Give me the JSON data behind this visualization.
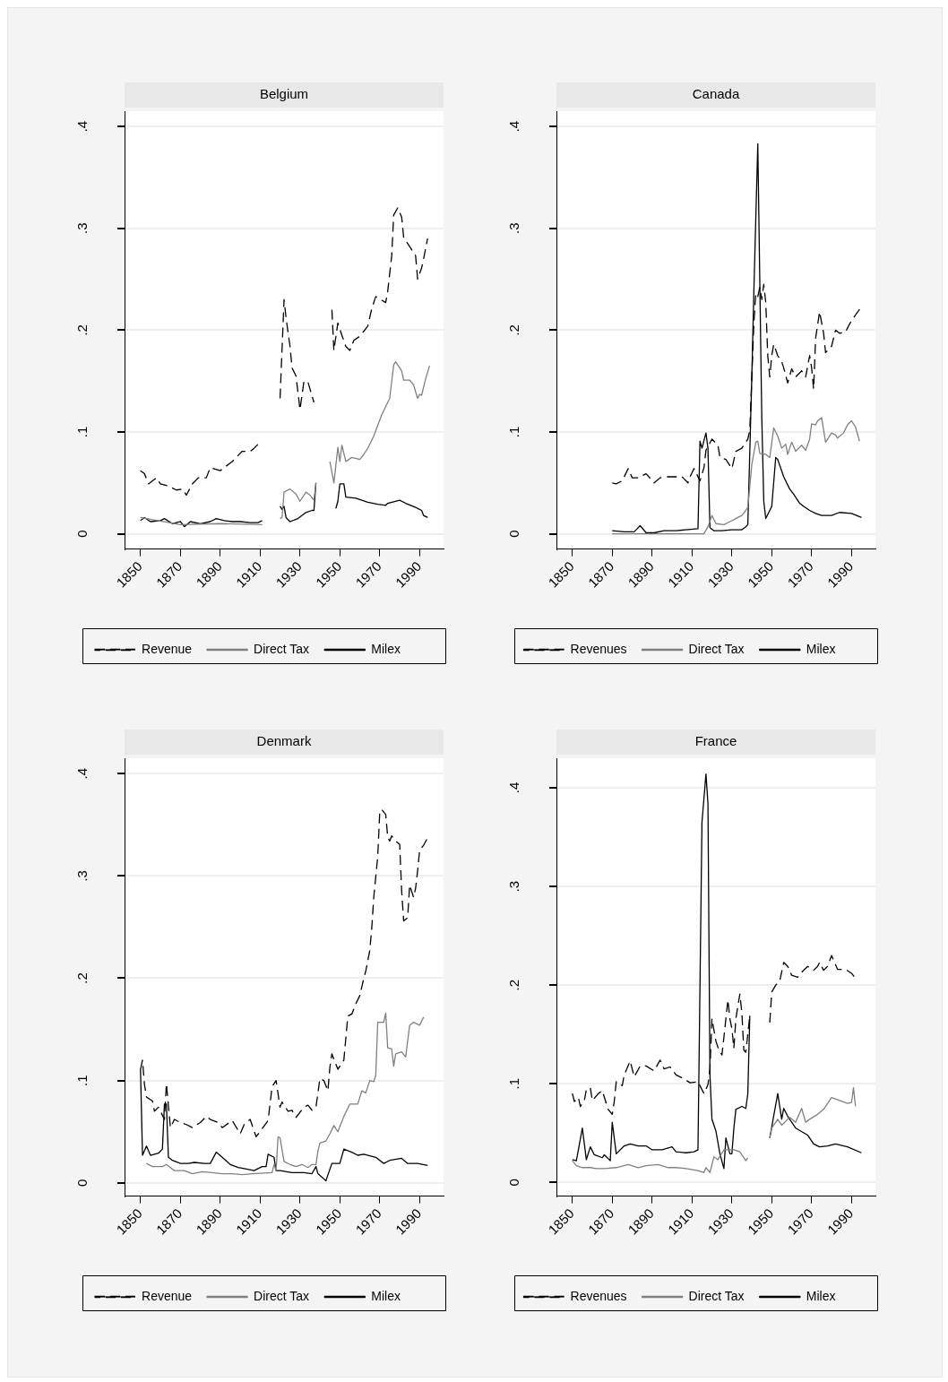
{
  "chart_data": [
    {
      "type": "line",
      "title": "Belgium",
      "xlim": [
        1842,
        2002
      ],
      "xticks": [
        1850,
        1870,
        1890,
        1910,
        1930,
        1950,
        1970,
        1990
      ],
      "ylim": [
        -0.015,
        0.415
      ],
      "yticks": [
        {
          "value": 0,
          "label": "0"
        },
        {
          "value": 0.1,
          "label": ".1"
        },
        {
          "value": 0.2,
          "label": ".2"
        },
        {
          "value": 0.3,
          "label": ".3"
        },
        {
          "value": 0.4,
          "label": ".4"
        }
      ],
      "grid": "y",
      "legend": "bottom",
      "series": [
        {
          "name": "Revenue",
          "color": "#000000",
          "line_style": "dashed",
          "x": [
            1850,
            1852,
            1854,
            1858,
            1860,
            1864,
            1868,
            1871,
            1873,
            1876,
            1879,
            1883,
            1885,
            1890,
            1892,
            1896,
            1901,
            1905,
            1907,
            1909,
            1911,
            1915,
            1920,
            1921,
            1922,
            1923,
            1925,
            1926,
            1928,
            1930,
            1932,
            1934,
            1937,
            1941,
            1946,
            1947,
            1949,
            1951,
            1953,
            1955,
            1957,
            1960,
            1964,
            1966,
            1968,
            1973,
            1974,
            1976,
            1977,
            1979,
            1981,
            1982,
            1985,
            1988,
            1989,
            1991,
            1992,
            1994
          ],
          "values": [
            0.062,
            0.059,
            0.049,
            0.055,
            0.049,
            0.047,
            0.043,
            0.044,
            0.038,
            0.049,
            0.055,
            0.055,
            0.065,
            0.062,
            0.065,
            0.071,
            0.081,
            0.081,
            0.084,
            0.088,
            0.088,
            null,
            0.133,
            0.181,
            0.23,
            0.212,
            0.184,
            0.163,
            0.155,
            0.122,
            0.15,
            0.149,
            0.129,
            null,
            0.22,
            0.18,
            0.207,
            0.195,
            0.184,
            0.18,
            0.19,
            0.194,
            0.204,
            0.221,
            0.233,
            0.227,
            0.238,
            0.273,
            0.313,
            0.32,
            0.311,
            0.291,
            0.282,
            0.273,
            0.25,
            0.261,
            0.27,
            0.29
          ]
        },
        {
          "name": "Direct Tax",
          "color": "#808080",
          "line_style": "solid",
          "x": [
            1850,
            1870,
            1890,
            1911,
            1915,
            1920,
            1921,
            1922,
            1925,
            1928,
            1930,
            1933,
            1935,
            1937,
            1938,
            1942,
            1945,
            1947,
            1949,
            1950,
            1951,
            1953,
            1956,
            1960,
            1962,
            1964,
            1967,
            1971,
            1975,
            1977,
            1978,
            1981,
            1982,
            1985,
            1987,
            1989,
            1990,
            1991,
            1993,
            1995
          ],
          "values": [
            0.016,
            0.009,
            0.01,
            0.009,
            null,
            0.015,
            0.016,
            0.041,
            0.044,
            0.039,
            0.032,
            0.041,
            0.038,
            0.033,
            0.05,
            null,
            0.071,
            0.05,
            0.085,
            0.071,
            0.087,
            0.071,
            0.075,
            0.073,
            0.078,
            0.084,
            0.096,
            0.117,
            0.133,
            0.166,
            0.169,
            0.16,
            0.151,
            0.151,
            0.146,
            0.133,
            0.137,
            0.136,
            0.152,
            0.165
          ]
        },
        {
          "name": "Milex",
          "color": "#000000",
          "line_style": "solid",
          "x": [
            1850,
            1852,
            1855,
            1860,
            1862,
            1866,
            1870,
            1872,
            1875,
            1880,
            1885,
            1888,
            1892,
            1896,
            1900,
            1905,
            1909,
            1911,
            1915,
            1920,
            1921,
            1922,
            1923,
            1925,
            1929,
            1933,
            1936,
            1937,
            1938,
            1942,
            1948,
            1949,
            1950,
            1952,
            1953,
            1958,
            1964,
            1969,
            1973,
            1974,
            1980,
            1983,
            1988,
            1991,
            1992,
            1994
          ],
          "values": [
            0.013,
            0.016,
            0.012,
            0.013,
            0.015,
            0.01,
            0.012,
            0.007,
            0.012,
            0.01,
            0.012,
            0.015,
            0.013,
            0.012,
            0.012,
            0.011,
            0.011,
            0.013,
            null,
            0.027,
            0.024,
            0.027,
            0.016,
            0.012,
            0.015,
            0.021,
            0.023,
            0.023,
            0.05,
            null,
            0.025,
            0.032,
            0.049,
            0.049,
            0.036,
            0.035,
            0.031,
            0.029,
            0.028,
            0.03,
            0.033,
            0.03,
            0.026,
            0.023,
            0.018,
            0.016
          ]
        }
      ]
    },
    {
      "type": "line",
      "title": "Canada",
      "xlim": [
        1842,
        2002
      ],
      "xticks": [
        1850,
        1870,
        1890,
        1910,
        1930,
        1950,
        1970,
        1990
      ],
      "ylim": [
        -0.015,
        0.415
      ],
      "yticks": [
        {
          "value": 0,
          "label": "0"
        },
        {
          "value": 0.1,
          "label": ".1"
        },
        {
          "value": 0.2,
          "label": ".2"
        },
        {
          "value": 0.3,
          "label": ".3"
        },
        {
          "value": 0.4,
          "label": ".4"
        }
      ],
      "grid": "y",
      "legend": "bottom",
      "series": [
        {
          "name": "Revenues",
          "color": "#000000",
          "line_style": "dashed",
          "x": [
            1870,
            1872,
            1875,
            1878,
            1880,
            1883,
            1887,
            1891,
            1894,
            1898,
            1905,
            1908,
            1909,
            1911,
            1914,
            1916,
            1917,
            1920,
            1923,
            1924,
            1927,
            1930,
            1932,
            1935,
            1938,
            1939,
            1940,
            1941,
            1942,
            1943,
            1944,
            1945,
            1946,
            1947,
            1948,
            1949,
            1950,
            1951,
            1953,
            1955,
            1956,
            1958,
            1960,
            1962,
            1965,
            1967,
            1969,
            1970,
            1971,
            1972,
            1974,
            1976,
            1977,
            1980,
            1982,
            1984,
            1987,
            1989,
            1992,
            1995
          ],
          "values": [
            0.05,
            0.049,
            0.052,
            0.064,
            0.055,
            0.055,
            0.059,
            0.05,
            0.055,
            0.056,
            0.056,
            0.05,
            0.056,
            0.064,
            0.052,
            0.065,
            0.082,
            0.093,
            0.087,
            0.075,
            0.073,
            0.064,
            0.081,
            0.084,
            0.093,
            0.102,
            0.154,
            0.206,
            0.236,
            0.233,
            0.242,
            0.23,
            0.245,
            0.227,
            0.175,
            0.154,
            0.175,
            0.186,
            0.175,
            0.169,
            0.163,
            0.148,
            0.162,
            0.154,
            0.16,
            0.154,
            0.175,
            0.163,
            0.142,
            0.192,
            0.218,
            0.197,
            0.178,
            0.184,
            0.2,
            0.197,
            0.198,
            0.206,
            0.215,
            0.223
          ]
        },
        {
          "name": "Direct Tax",
          "color": "#808080",
          "line_style": "solid",
          "x": [
            1870,
            1916,
            1918,
            1920,
            1922,
            1926,
            1929,
            1932,
            1935,
            1937,
            1938,
            1940,
            1942,
            1943,
            1944,
            1947,
            1949,
            1951,
            1953,
            1955,
            1957,
            1958,
            1960,
            1962,
            1965,
            1967,
            1969,
            1970,
            1972,
            1973,
            1975,
            1977,
            1980,
            1982,
            1983,
            1986,
            1988,
            1990,
            1992,
            1994
          ],
          "values": [
            0,
            0,
            0.007,
            0.018,
            0.01,
            0.009,
            0.012,
            0.015,
            0.018,
            0.023,
            0.026,
            0.068,
            0.09,
            0.091,
            0.079,
            0.078,
            0.075,
            0.104,
            0.096,
            0.084,
            0.088,
            0.078,
            0.09,
            0.081,
            0.087,
            0.082,
            0.093,
            0.108,
            0.107,
            0.111,
            0.114,
            0.09,
            0.099,
            0.097,
            0.094,
            0.099,
            0.107,
            0.111,
            0.105,
            0.091
          ]
        },
        {
          "name": "Milex",
          "color": "#000000",
          "line_style": "solid",
          "x": [
            1870,
            1876,
            1881,
            1884,
            1887,
            1891,
            1896,
            1902,
            1907,
            1913,
            1914,
            1915,
            1917,
            1918,
            1919,
            1921,
            1925,
            1930,
            1935,
            1937,
            1938,
            1940,
            1941,
            1943,
            1945,
            1946,
            1947,
            1950,
            1952,
            1953,
            1956,
            1959,
            1961,
            1964,
            1966,
            1969,
            1972,
            1975,
            1980,
            1984,
            1990,
            1995
          ],
          "values": [
            0.003,
            0.002,
            0.002,
            0.008,
            0.001,
            0.001,
            0.003,
            0.003,
            0.004,
            0.005,
            0.091,
            0.084,
            0.099,
            0.084,
            0.006,
            0.003,
            0.003,
            0.004,
            0.004,
            0.007,
            0.009,
            0.154,
            0.236,
            0.383,
            0.114,
            0.032,
            0.015,
            0.027,
            0.075,
            0.073,
            0.056,
            0.044,
            0.039,
            0.03,
            0.027,
            0.023,
            0.02,
            0.018,
            0.018,
            0.021,
            0.02,
            0.016
          ]
        }
      ]
    },
    {
      "type": "line",
      "title": "Denmark",
      "xlim": [
        1842,
        2002
      ],
      "xticks": [
        1850,
        1870,
        1890,
        1910,
        1930,
        1950,
        1970,
        1990
      ],
      "ylim": [
        -0.013,
        0.415
      ],
      "yticks": [
        {
          "value": 0,
          "label": "0"
        },
        {
          "value": 0.1,
          "label": ".1"
        },
        {
          "value": 0.2,
          "label": ".2"
        },
        {
          "value": 0.3,
          "label": ".3"
        },
        {
          "value": 0.4,
          "label": ".4"
        }
      ],
      "grid": "y",
      "legend": "bottom",
      "series": [
        {
          "name": "Revenue",
          "color": "#000000",
          "line_style": "dashed",
          "x": [
            1850,
            1851,
            1852,
            1853,
            1856,
            1857,
            1859,
            1862,
            1863,
            1865,
            1867,
            1870,
            1873,
            1876,
            1880,
            1883,
            1885,
            1889,
            1891,
            1896,
            1900,
            1902,
            1905,
            1908,
            1911,
            1914,
            1916,
            1918,
            1920,
            1921,
            1924,
            1926,
            1928,
            1932,
            1934,
            1936,
            1938,
            1940,
            1942,
            1944,
            1945,
            1946,
            1949,
            1952,
            1954,
            1956,
            1958,
            1960,
            1962,
            1963,
            1965,
            1966,
            1967,
            1969,
            1970,
            1971,
            1973,
            1974,
            1975,
            1976,
            1978,
            1980,
            1981,
            1982,
            1984,
            1985,
            1986,
            1987,
            1988,
            1989,
            1990,
            1992,
            1994
          ],
          "values": [
            0.111,
            0.12,
            0.096,
            0.084,
            0.08,
            0.07,
            0.074,
            0.062,
            0.097,
            0.054,
            0.062,
            0.059,
            0.057,
            0.054,
            0.059,
            0.065,
            0.062,
            0.059,
            0.054,
            0.061,
            0.048,
            0.057,
            0.062,
            0.045,
            0.053,
            0.061,
            0.094,
            0.1,
            0.074,
            0.079,
            0.07,
            0.071,
            0.064,
            0.074,
            0.076,
            0.071,
            0.074,
            0.102,
            0.1,
            0.09,
            0.113,
            0.126,
            0.111,
            0.12,
            0.163,
            0.165,
            0.175,
            0.183,
            0.2,
            0.207,
            0.227,
            0.249,
            0.279,
            0.319,
            0.362,
            0.365,
            0.36,
            0.338,
            0.334,
            0.339,
            0.334,
            0.331,
            0.285,
            0.256,
            0.259,
            0.291,
            0.285,
            0.279,
            0.288,
            0.305,
            0.325,
            0.33,
            0.337
          ]
        },
        {
          "name": "Direct Tax",
          "color": "#808080",
          "line_style": "solid",
          "x": [
            1853,
            1856,
            1861,
            1863,
            1865,
            1867,
            1872,
            1876,
            1881,
            1886,
            1891,
            1896,
            1901,
            1906,
            1916,
            1917,
            1918,
            1919,
            1920,
            1922,
            1925,
            1928,
            1931,
            1934,
            1936,
            1938,
            1939,
            1940,
            1943,
            1945,
            1947,
            1949,
            1952,
            1955,
            1959,
            1961,
            1963,
            1965,
            1967,
            1968,
            1969,
            1972,
            1973,
            1974,
            1976,
            1977,
            1978,
            1981,
            1983,
            1985,
            1987,
            1989,
            1990,
            1992
          ],
          "values": [
            0.019,
            0.016,
            0.016,
            0.018,
            0.015,
            0.012,
            0.012,
            0.009,
            0.011,
            0.01,
            0.009,
            0.009,
            0.008,
            0.009,
            0.01,
            0.018,
            0.012,
            0.045,
            0.044,
            0.021,
            0.018,
            0.016,
            0.018,
            0.015,
            0.018,
            0.018,
            0.031,
            0.039,
            0.041,
            0.048,
            0.056,
            0.05,
            0.065,
            0.077,
            0.077,
            0.09,
            0.088,
            0.1,
            0.099,
            0.105,
            0.157,
            0.157,
            0.166,
            0.132,
            0.131,
            0.114,
            0.126,
            0.128,
            0.123,
            0.154,
            0.157,
            0.155,
            0.154,
            0.162
          ]
        },
        {
          "name": "Milex",
          "color": "#000000",
          "line_style": "solid",
          "x": [
            1850,
            1851,
            1853,
            1855,
            1859,
            1861,
            1862,
            1863,
            1864,
            1866,
            1870,
            1874,
            1877,
            1882,
            1885,
            1888,
            1891,
            1895,
            1899,
            1902,
            1907,
            1911,
            1913,
            1914,
            1917,
            1918,
            1920,
            1926,
            1932,
            1936,
            1938,
            1939,
            1943,
            1946,
            1950,
            1952,
            1956,
            1959,
            1962,
            1968,
            1972,
            1975,
            1981,
            1984,
            1989,
            1994
          ],
          "values": [
            0.111,
            0.027,
            0.036,
            0.027,
            0.029,
            0.033,
            0.077,
            0.077,
            0.025,
            0.022,
            0.019,
            0.019,
            0.02,
            0.019,
            0.019,
            0.03,
            0.025,
            0.018,
            0.015,
            0.014,
            0.012,
            0.016,
            0.016,
            0.028,
            0.025,
            0.012,
            0.012,
            0.01,
            0.01,
            0.009,
            0.016,
            0.009,
            0.002,
            0.019,
            0.019,
            0.033,
            0.03,
            0.027,
            0.028,
            0.025,
            0.019,
            0.022,
            0.024,
            0.019,
            0.019,
            0.017
          ]
        }
      ]
    },
    {
      "type": "line",
      "title": "France",
      "xlim": [
        1842,
        2002
      ],
      "xticks": [
        1850,
        1870,
        1890,
        1910,
        1930,
        1950,
        1970,
        1990
      ],
      "ylim": [
        -0.014,
        0.43
      ],
      "yticks": [
        {
          "value": 0,
          "label": "0"
        },
        {
          "value": 0.1,
          "label": ".1"
        },
        {
          "value": 0.2,
          "label": ".2"
        },
        {
          "value": 0.3,
          "label": ".3"
        },
        {
          "value": 0.4,
          "label": ".4"
        }
      ],
      "grid": "y",
      "legend": "bottom",
      "series": [
        {
          "name": "Revenues",
          "color": "#000000",
          "line_style": "dashed",
          "x": [
            1850,
            1851,
            1853,
            1854,
            1856,
            1857,
            1859,
            1860,
            1863,
            1865,
            1867,
            1868,
            1870,
            1871,
            1872,
            1875,
            1876,
            1879,
            1881,
            1884,
            1887,
            1891,
            1894,
            1896,
            1899,
            1902,
            1906,
            1909,
            1913,
            1916,
            1918,
            1919,
            1920,
            1922,
            1923,
            1925,
            1926,
            1928,
            1929,
            1930,
            1931,
            1932,
            1934,
            1935,
            1936,
            1937,
            1939,
            1944,
            1949,
            1950,
            1952,
            1954,
            1956,
            1958,
            1960,
            1963,
            1965,
            1968,
            1971,
            1973,
            1974,
            1976,
            1978,
            1980,
            1983,
            1987,
            1990,
            1992
          ],
          "values": [
            0.09,
            0.082,
            0.086,
            0.077,
            0.083,
            0.094,
            0.096,
            0.083,
            0.09,
            0.093,
            0.08,
            0.074,
            0.069,
            0.082,
            0.102,
            0.098,
            0.109,
            0.123,
            0.107,
            0.118,
            0.118,
            0.113,
            0.124,
            0.115,
            0.117,
            0.109,
            0.105,
            0.101,
            0.102,
            0.09,
            0.099,
            0.115,
            0.166,
            0.143,
            0.137,
            0.129,
            0.147,
            0.185,
            0.166,
            0.156,
            0.136,
            0.166,
            0.191,
            0.172,
            0.134,
            0.132,
            0.169,
            null,
            0.162,
            0.193,
            0.2,
            0.204,
            0.223,
            0.219,
            0.21,
            0.208,
            0.213,
            0.219,
            0.215,
            0.219,
            0.223,
            0.215,
            0.219,
            0.23,
            0.216,
            0.216,
            0.212,
            0.207
          ]
        },
        {
          "name": "Direct Tax",
          "color": "#808080",
          "line_style": "solid",
          "x": [
            1850,
            1852,
            1855,
            1859,
            1862,
            1866,
            1872,
            1878,
            1883,
            1887,
            1893,
            1898,
            1902,
            1907,
            1913,
            1916,
            1917,
            1919,
            1921,
            1923,
            1926,
            1931,
            1934,
            1937,
            1938,
            1944,
            1949,
            1950,
            1953,
            1955,
            1959,
            1962,
            1965,
            1967,
            1969,
            1973,
            1976,
            1980,
            1984,
            1988,
            1990,
            1991,
            1992
          ],
          "values": [
            0.022,
            0.017,
            0.015,
            0.015,
            0.014,
            0.014,
            0.015,
            0.018,
            0.015,
            0.017,
            0.018,
            0.015,
            0.015,
            0.014,
            0.012,
            0.01,
            0.015,
            0.01,
            0.026,
            0.023,
            0.033,
            0.033,
            0.031,
            0.022,
            0.025,
            null,
            0.045,
            0.055,
            0.064,
            0.058,
            0.066,
            0.061,
            0.075,
            0.061,
            0.064,
            0.069,
            0.074,
            0.086,
            0.083,
            0.08,
            0.081,
            0.096,
            0.077
          ]
        },
        {
          "name": "Milex",
          "color": "#000000",
          "line_style": "solid",
          "x": [
            1850,
            1852,
            1855,
            1857,
            1859,
            1861,
            1865,
            1866,
            1869,
            1870,
            1872,
            1876,
            1879,
            1883,
            1887,
            1890,
            1895,
            1900,
            1902,
            1907,
            1911,
            1913,
            1915,
            1917,
            1918,
            1919,
            1920,
            1922,
            1924,
            1926,
            1927,
            1929,
            1930,
            1931,
            1932,
            1935,
            1937,
            1938,
            1939,
            1944,
            1949,
            1953,
            1955,
            1956,
            1958,
            1962,
            1968,
            1971,
            1974,
            1978,
            1982,
            1988,
            1995
          ],
          "values": [
            0.023,
            0.022,
            0.055,
            0.023,
            0.036,
            0.028,
            0.025,
            0.028,
            0.022,
            0.061,
            0.029,
            0.037,
            0.039,
            0.037,
            0.037,
            0.033,
            0.033,
            0.036,
            0.031,
            0.03,
            0.031,
            0.033,
            0.365,
            0.414,
            0.384,
            0.109,
            0.064,
            0.052,
            0.029,
            0.014,
            0.045,
            0.029,
            0.029,
            0.055,
            0.074,
            0.077,
            0.075,
            0.09,
            0.169,
            null,
            0.045,
            0.09,
            0.064,
            0.075,
            0.067,
            0.055,
            0.048,
            0.039,
            0.036,
            0.037,
            0.039,
            0.036,
            0.03
          ]
        }
      ]
    }
  ]
}
